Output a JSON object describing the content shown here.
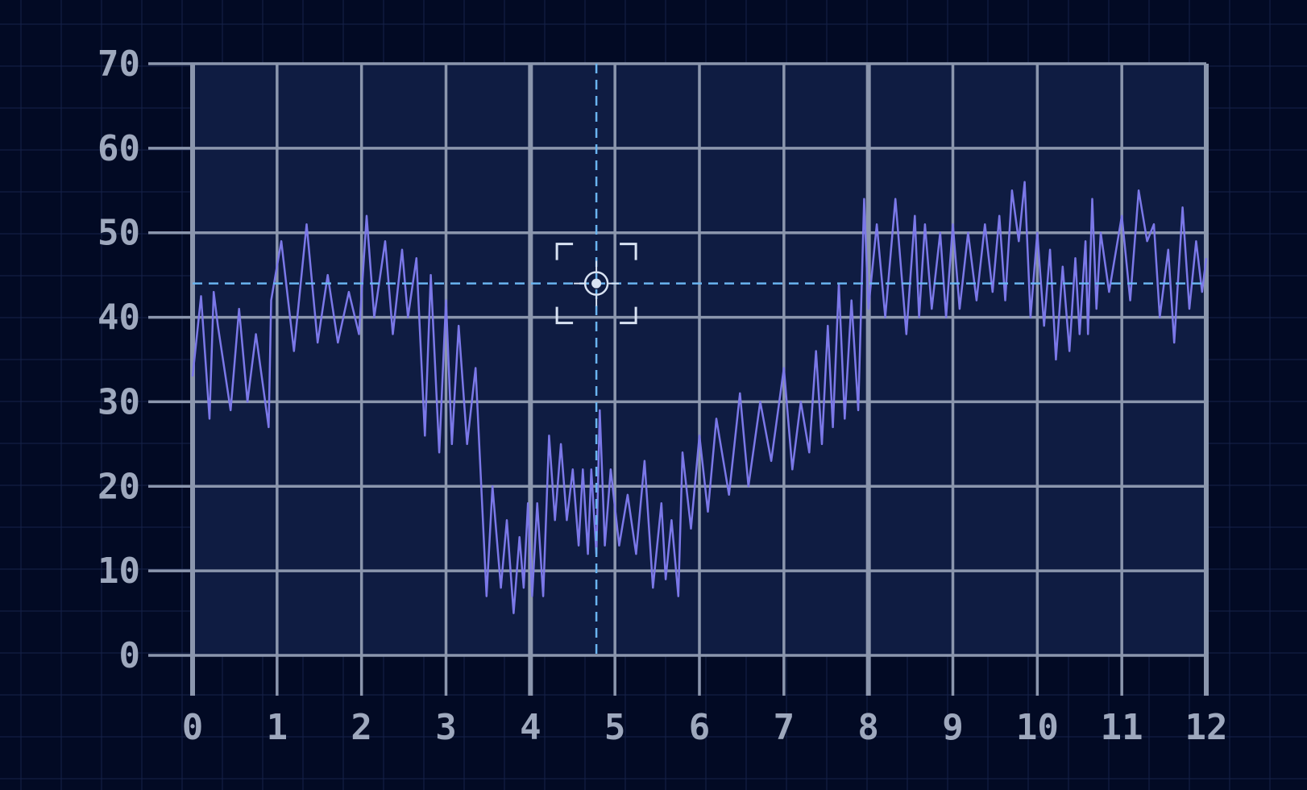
{
  "colors": {
    "background": "#020a24",
    "plot_background": "#0f1c42",
    "grid": "#8b96ad",
    "series": "#7b78e8",
    "crosshair": "#6ab4f0",
    "reticle": "#d8e2f2",
    "tick_text": "#9ea8bd"
  },
  "chart_data": {
    "type": "line",
    "title": "",
    "xlabel": "",
    "ylabel": "",
    "xlim": [
      0,
      12
    ],
    "ylim": [
      0,
      70
    ],
    "xticks": [
      0,
      1,
      2,
      3,
      4,
      5,
      6,
      7,
      8,
      9,
      10,
      11,
      12
    ],
    "yticks": [
      0,
      10,
      20,
      30,
      40,
      50,
      60,
      70
    ],
    "xtick_labels": [
      "0",
      "1",
      "2",
      "3",
      "4",
      "5",
      "6",
      "7",
      "8",
      "9",
      "10",
      "11",
      "12"
    ],
    "ytick_labels": [
      "0",
      "10",
      "20",
      "30",
      "40",
      "50",
      "60",
      "70"
    ],
    "grid": true,
    "legend": "none",
    "crosshair": {
      "x": 4.78,
      "y": 44
    },
    "series": [
      {
        "x": [
          0,
          0.1,
          0.2,
          0.25,
          0.3,
          0.45,
          0.55,
          0.65,
          0.75,
          0.9,
          0.93,
          1.05,
          1.2,
          1.35,
          1.48,
          1.6,
          1.72,
          1.85,
          1.97,
          2.06,
          2.15,
          2.28,
          2.37,
          2.48,
          2.55,
          2.65,
          2.75,
          2.82,
          2.92,
          3.0,
          3.07,
          3.15,
          3.25,
          3.35,
          3.48,
          3.55,
          3.65,
          3.72,
          3.8,
          3.87,
          3.92,
          3.97,
          4.02,
          4.08,
          4.15,
          4.22,
          4.29,
          4.36,
          4.43,
          4.5,
          4.57,
          4.62,
          4.68,
          4.72,
          4.78,
          4.82,
          4.88,
          4.95,
          5.05,
          5.15,
          5.25,
          5.35,
          5.45,
          5.55,
          5.6,
          5.67,
          5.75,
          5.8,
          5.9,
          6.0,
          6.1,
          6.2,
          6.35,
          6.48,
          6.58,
          6.72,
          6.85,
          7.0,
          7.1,
          7.2,
          7.3,
          7.38,
          7.45,
          7.52,
          7.58,
          7.65,
          7.72,
          7.8,
          7.88,
          7.95,
          8.0,
          8.1,
          8.2,
          8.32,
          8.45,
          8.55,
          8.6,
          8.67,
          8.75,
          8.85,
          8.92,
          9.0,
          9.08,
          9.18,
          9.28,
          9.38,
          9.47,
          9.55,
          9.62,
          9.7,
          9.78,
          9.85,
          9.92,
          10.0,
          10.08,
          10.15,
          10.22,
          10.3,
          10.38,
          10.45,
          10.5,
          10.57,
          10.6,
          10.65,
          10.7,
          10.75,
          10.85,
          11.0,
          11.1,
          11.2,
          11.3,
          11.38,
          11.45,
          11.55,
          11.62,
          11.72,
          11.8,
          11.88,
          11.95,
          12.0
        ],
        "y": [
          33,
          42.5,
          28,
          43,
          39,
          29,
          41,
          30,
          38,
          27,
          42,
          49,
          36,
          51,
          37,
          45,
          37,
          43,
          38,
          52,
          40,
          49,
          38,
          48,
          40,
          47,
          26,
          45,
          24,
          42,
          25,
          39,
          25,
          34,
          7,
          20,
          8,
          16,
          5,
          14,
          8,
          18,
          7,
          18,
          7,
          26,
          16,
          25,
          16,
          22,
          13,
          22,
          12,
          22,
          12,
          29,
          13,
          22,
          13,
          19,
          12,
          23,
          8,
          18,
          9,
          16,
          7,
          24,
          15,
          26,
          17,
          28,
          19,
          31,
          20,
          30,
          23,
          34,
          22,
          30,
          24,
          36,
          25,
          39,
          27,
          44,
          28,
          42,
          29,
          54,
          41,
          51,
          40,
          54,
          38,
          52,
          40,
          51,
          41,
          50,
          40,
          51,
          41,
          50,
          42,
          51,
          43,
          52,
          42,
          55,
          49,
          56,
          40,
          50,
          39,
          48,
          35,
          46,
          36,
          47,
          38,
          49,
          38,
          54,
          41,
          50,
          43,
          52,
          42,
          55,
          49,
          51,
          40,
          48,
          37,
          53,
          41,
          49,
          43,
          47
        ]
      }
    ]
  }
}
